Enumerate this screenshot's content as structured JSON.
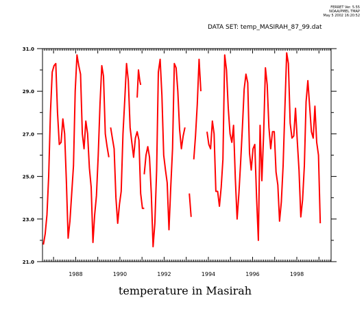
{
  "header": {
    "line1": "FERRET Ver. 5.55",
    "line2": "NOAA/PMEL TMAP",
    "line3": "May  5 2002 16:20:52",
    "dataset": "DATA SET: temp_MASIRAH_87_99.dat"
  },
  "chart_data": {
    "type": "line",
    "xlabel": "temperature in Masirah",
    "ylabel": "",
    "xlim": [
      1986.5,
      1999.55
    ],
    "ylim": [
      21.0,
      31.0
    ],
    "x_ticks": [
      "1988",
      "1990",
      "1992",
      "1994",
      "1996",
      "1998"
    ],
    "y_ticks": [
      "21.0",
      "23.0",
      "25.0",
      "27.0",
      "29.0",
      "31.0"
    ],
    "grid": false,
    "series": [
      {
        "color": "#ff0000",
        "segments": [
          [
            [
              1986.54,
              21.8
            ],
            [
              1986.62,
              22.3
            ],
            [
              1986.7,
              23.2
            ],
            [
              1986.78,
              25.0
            ],
            [
              1986.86,
              28.0
            ],
            [
              1986.94,
              29.9
            ],
            [
              1987.02,
              30.2
            ],
            [
              1987.1,
              30.3
            ],
            [
              1987.18,
              28.0
            ],
            [
              1987.26,
              26.5
            ],
            [
              1987.34,
              26.6
            ],
            [
              1987.42,
              27.7
            ],
            [
              1987.5,
              27.0
            ],
            [
              1987.58,
              24.8
            ],
            [
              1987.66,
              22.1
            ],
            [
              1987.74,
              22.9
            ],
            [
              1987.82,
              24.2
            ],
            [
              1987.9,
              25.5
            ],
            [
              1987.98,
              29.0
            ],
            [
              1988.06,
              30.7
            ],
            [
              1988.14,
              30.2
            ],
            [
              1988.22,
              29.8
            ],
            [
              1988.3,
              27.0
            ],
            [
              1988.38,
              26.3
            ],
            [
              1988.46,
              27.6
            ],
            [
              1988.54,
              27.0
            ],
            [
              1988.62,
              25.4
            ],
            [
              1988.7,
              24.5
            ],
            [
              1988.78,
              21.9
            ],
            [
              1988.86,
              23.2
            ],
            [
              1988.94,
              24.1
            ],
            [
              1989.02,
              26.0
            ],
            [
              1989.1,
              28.4
            ],
            [
              1989.18,
              30.2
            ],
            [
              1989.26,
              29.7
            ],
            [
              1989.34,
              27.0
            ],
            [
              1989.42,
              26.4
            ],
            [
              1989.5,
              25.9
            ]
          ],
          [
            [
              1989.58,
              27.3
            ],
            [
              1989.66,
              26.8
            ],
            [
              1989.74,
              26.3
            ],
            [
              1989.82,
              24.0
            ],
            [
              1989.9,
              22.8
            ],
            [
              1989.98,
              23.7
            ],
            [
              1990.06,
              24.3
            ],
            [
              1990.14,
              27.0
            ],
            [
              1990.22,
              28.6
            ],
            [
              1990.3,
              30.3
            ],
            [
              1990.38,
              29.5
            ],
            [
              1990.46,
              27.3
            ],
            [
              1990.54,
              26.6
            ],
            [
              1990.62,
              25.9
            ],
            [
              1990.7,
              26.8
            ],
            [
              1990.78,
              27.1
            ],
            [
              1990.86,
              26.7
            ],
            [
              1990.94,
              24.2
            ],
            [
              1991.02,
              23.5
            ],
            [
              1991.1,
              23.5
            ]
          ],
          [
            [
              1990.78,
              28.7
            ],
            [
              1990.84,
              30.0
            ],
            [
              1990.9,
              29.5
            ],
            [
              1990.94,
              29.3
            ]
          ],
          [
            [
              1991.1,
              25.1
            ],
            [
              1991.18,
              26.0
            ],
            [
              1991.26,
              26.4
            ],
            [
              1991.34,
              25.9
            ],
            [
              1991.42,
              24.2
            ],
            [
              1991.5,
              21.7
            ],
            [
              1991.58,
              22.8
            ],
            [
              1991.66,
              25.3
            ],
            [
              1991.74,
              29.9
            ],
            [
              1991.82,
              30.5
            ],
            [
              1991.9,
              28.8
            ],
            [
              1991.98,
              26.0
            ],
            [
              1992.06,
              25.3
            ],
            [
              1992.14,
              24.7
            ],
            [
              1992.22,
              22.5
            ],
            [
              1992.3,
              24.5
            ],
            [
              1992.38,
              26.3
            ],
            [
              1992.46,
              30.3
            ],
            [
              1992.54,
              30.1
            ],
            [
              1992.62,
              29.0
            ],
            [
              1992.7,
              27.2
            ],
            [
              1992.78,
              26.3
            ],
            [
              1992.86,
              26.9
            ],
            [
              1992.94,
              27.3
            ]
          ],
          [
            [
              1993.14,
              24.2
            ],
            [
              1993.22,
              23.1
            ]
          ],
          [
            [
              1993.34,
              25.8
            ],
            [
              1993.42,
              26.9
            ],
            [
              1993.5,
              28.4
            ],
            [
              1993.58,
              30.5
            ],
            [
              1993.66,
              29.0
            ]
          ],
          [
            [
              1993.94,
              27.1
            ],
            [
              1994.02,
              26.5
            ],
            [
              1994.1,
              26.3
            ],
            [
              1994.18,
              27.6
            ],
            [
              1994.26,
              27.0
            ],
            [
              1994.34,
              24.3
            ],
            [
              1994.42,
              24.3
            ],
            [
              1994.5,
              23.6
            ],
            [
              1994.58,
              24.5
            ],
            [
              1994.66,
              25.8
            ],
            [
              1994.74,
              30.7
            ],
            [
              1994.82,
              30.0
            ],
            [
              1994.9,
              28.2
            ],
            [
              1994.98,
              27.0
            ],
            [
              1995.06,
              26.6
            ],
            [
              1995.14,
              27.4
            ],
            [
              1995.22,
              24.9
            ],
            [
              1995.3,
              23.0
            ],
            [
              1995.38,
              24.2
            ],
            [
              1995.46,
              25.7
            ],
            [
              1995.54,
              27.3
            ],
            [
              1995.62,
              29.1
            ],
            [
              1995.7,
              29.8
            ],
            [
              1995.78,
              29.4
            ],
            [
              1995.86,
              26.1
            ],
            [
              1995.94,
              25.3
            ],
            [
              1996.02,
              26.3
            ],
            [
              1996.1,
              26.5
            ],
            [
              1996.18,
              24.0
            ],
            [
              1996.26,
              22.0
            ],
            [
              1996.34,
              27.4
            ],
            [
              1996.42,
              24.8
            ],
            [
              1996.5,
              27.0
            ],
            [
              1996.58,
              30.1
            ],
            [
              1996.66,
              29.3
            ],
            [
              1996.74,
              27.3
            ],
            [
              1996.82,
              26.3
            ],
            [
              1996.9,
              27.1
            ],
            [
              1996.98,
              27.1
            ],
            [
              1997.06,
              25.2
            ],
            [
              1997.14,
              24.6
            ],
            [
              1997.22,
              22.9
            ],
            [
              1997.3,
              23.8
            ],
            [
              1997.38,
              25.5
            ],
            [
              1997.46,
              28.2
            ],
            [
              1997.54,
              30.8
            ],
            [
              1997.62,
              30.3
            ],
            [
              1997.7,
              27.5
            ],
            [
              1997.78,
              26.8
            ],
            [
              1997.86,
              26.9
            ],
            [
              1997.94,
              28.2
            ],
            [
              1998.02,
              26.7
            ],
            [
              1998.1,
              25.3
            ],
            [
              1998.18,
              23.1
            ],
            [
              1998.26,
              23.9
            ],
            [
              1998.34,
              25.5
            ],
            [
              1998.42,
              28.5
            ],
            [
              1998.5,
              29.5
            ],
            [
              1998.58,
              28.3
            ],
            [
              1998.66,
              27.1
            ],
            [
              1998.74,
              26.8
            ],
            [
              1998.82,
              28.3
            ],
            [
              1998.9,
              26.6
            ],
            [
              1998.98,
              26.0
            ],
            [
              1999.06,
              22.8
            ]
          ]
        ]
      }
    ]
  }
}
